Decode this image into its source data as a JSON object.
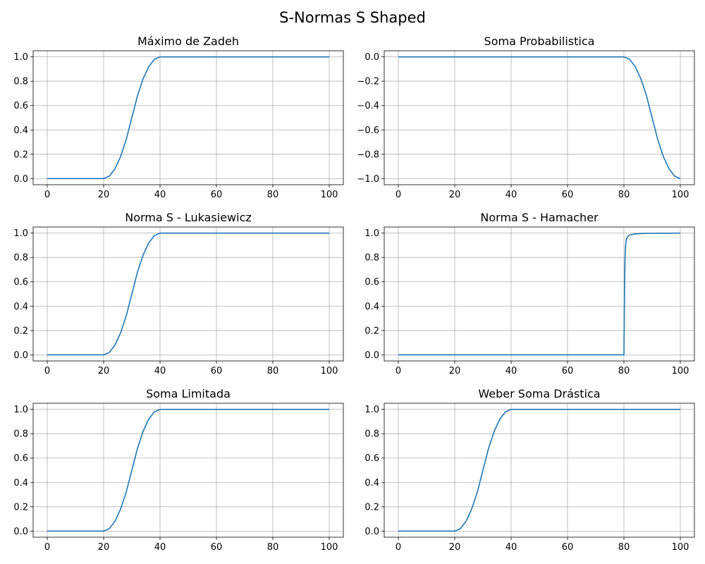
{
  "figure": {
    "title": "S-Normas S Shaped"
  },
  "style": {
    "line_color": "#1f77b4",
    "grid_color": "#b0b0b0",
    "axis_color": "#000000",
    "background": "#ffffff"
  },
  "chart_data": [
    {
      "type": "line",
      "title": "Máximo de Zadeh",
      "xlabel": "",
      "ylabel": "",
      "xlim": [
        -5,
        105
      ],
      "ylim": [
        -0.05,
        1.05
      ],
      "xticks": [
        0,
        20,
        40,
        60,
        80,
        100
      ],
      "yticks": [
        0.0,
        0.2,
        0.4,
        0.6,
        0.8,
        1.0
      ],
      "grid": true,
      "series": [
        {
          "x": [
            0,
            20,
            22,
            24,
            26,
            28,
            30,
            32,
            34,
            36,
            38,
            40,
            100
          ],
          "y": [
            0,
            0,
            0.02,
            0.08,
            0.18,
            0.32,
            0.5,
            0.68,
            0.82,
            0.92,
            0.98,
            1,
            1
          ]
        }
      ]
    },
    {
      "type": "line",
      "title": "Soma Probabilistica",
      "xlabel": "",
      "ylabel": "",
      "xlim": [
        -5,
        105
      ],
      "ylim": [
        -1.05,
        0.05
      ],
      "xticks": [
        0,
        20,
        40,
        60,
        80,
        100
      ],
      "yticks": [
        0.0,
        -0.2,
        -0.4,
        -0.6,
        -0.8,
        -1.0
      ],
      "grid": true,
      "series": [
        {
          "x": [
            0,
            80,
            82,
            84,
            86,
            88,
            90,
            92,
            94,
            96,
            98,
            100
          ],
          "y": [
            0,
            0,
            -0.02,
            -0.08,
            -0.18,
            -0.32,
            -0.5,
            -0.68,
            -0.82,
            -0.92,
            -0.98,
            -1
          ]
        }
      ]
    },
    {
      "type": "line",
      "title": "Norma S - Lukasiewicz",
      "xlabel": "",
      "ylabel": "",
      "xlim": [
        -5,
        105
      ],
      "ylim": [
        -0.05,
        1.05
      ],
      "xticks": [
        0,
        20,
        40,
        60,
        80,
        100
      ],
      "yticks": [
        0.0,
        0.2,
        0.4,
        0.6,
        0.8,
        1.0
      ],
      "grid": true,
      "series": [
        {
          "x": [
            0,
            20,
            22,
            24,
            26,
            28,
            30,
            32,
            34,
            36,
            38,
            40,
            100
          ],
          "y": [
            0,
            0,
            0.02,
            0.08,
            0.18,
            0.32,
            0.5,
            0.68,
            0.82,
            0.92,
            0.98,
            1,
            1
          ]
        }
      ]
    },
    {
      "type": "line",
      "title": "Norma S - Hamacher",
      "xlabel": "",
      "ylabel": "",
      "xlim": [
        -5,
        105
      ],
      "ylim": [
        -0.05,
        1.05
      ],
      "xticks": [
        0,
        20,
        40,
        60,
        80,
        100
      ],
      "yticks": [
        0.0,
        0.2,
        0.4,
        0.6,
        0.8,
        1.0
      ],
      "grid": true,
      "series": [
        {
          "x": [
            0,
            80,
            80.2,
            80.4,
            80.6,
            80.8,
            81,
            81.5,
            82,
            84,
            88,
            100
          ],
          "y": [
            0,
            0,
            0.5,
            0.8,
            0.9,
            0.94,
            0.96,
            0.975,
            0.985,
            0.993,
            0.998,
            1
          ]
        }
      ]
    },
    {
      "type": "line",
      "title": "Soma Limitada",
      "xlabel": "",
      "ylabel": "",
      "xlim": [
        -5,
        105
      ],
      "ylim": [
        -0.05,
        1.05
      ],
      "xticks": [
        0,
        20,
        40,
        60,
        80,
        100
      ],
      "yticks": [
        0.0,
        0.2,
        0.4,
        0.6,
        0.8,
        1.0
      ],
      "grid": true,
      "series": [
        {
          "x": [
            0,
            20,
            22,
            24,
            26,
            28,
            30,
            32,
            34,
            36,
            38,
            40,
            100
          ],
          "y": [
            0,
            0,
            0.02,
            0.08,
            0.18,
            0.32,
            0.5,
            0.68,
            0.82,
            0.92,
            0.98,
            1,
            1
          ]
        }
      ]
    },
    {
      "type": "line",
      "title": "Weber Soma Drástica",
      "xlabel": "",
      "ylabel": "",
      "xlim": [
        -5,
        105
      ],
      "ylim": [
        -0.05,
        1.05
      ],
      "xticks": [
        0,
        20,
        40,
        60,
        80,
        100
      ],
      "yticks": [
        0.0,
        0.2,
        0.4,
        0.6,
        0.8,
        1.0
      ],
      "grid": true,
      "series": [
        {
          "x": [
            0,
            20,
            22,
            24,
            26,
            28,
            30,
            32,
            34,
            36,
            38,
            40,
            100
          ],
          "y": [
            0,
            0,
            0.02,
            0.08,
            0.18,
            0.32,
            0.5,
            0.68,
            0.82,
            0.92,
            0.98,
            1,
            1
          ]
        }
      ]
    }
  ]
}
